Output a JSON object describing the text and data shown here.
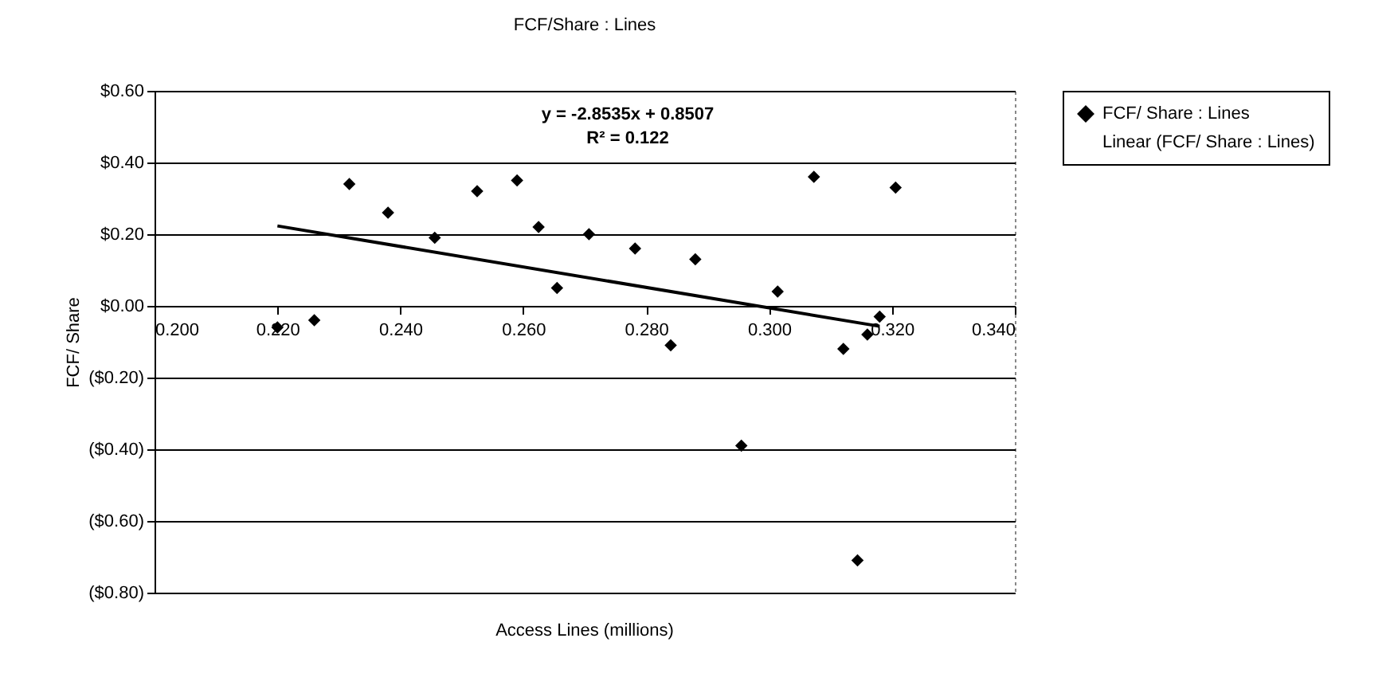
{
  "chart_data": {
    "type": "scatter",
    "title": "FCF/Share : Lines",
    "xlabel": "Access Lines (millions)",
    "ylabel": "FCF/ Share",
    "annotations": [
      "y = -2.8535x + 0.8507",
      "R² = 0.122"
    ],
    "xlim": [
      0.2,
      0.34
    ],
    "xticks": [
      {
        "value": 0.2,
        "label": "0.200"
      },
      {
        "value": 0.22,
        "label": "0.220"
      },
      {
        "value": 0.24,
        "label": "0.240"
      },
      {
        "value": 0.26,
        "label": "0.260"
      },
      {
        "value": 0.28,
        "label": "0.280"
      },
      {
        "value": 0.3,
        "label": "0.300"
      },
      {
        "value": 0.32,
        "label": "0.320"
      },
      {
        "value": 0.34,
        "label": "0.340"
      }
    ],
    "ylim": [
      -0.8,
      0.6
    ],
    "yticks": [
      {
        "value": -0.8,
        "label": "($0.80)"
      },
      {
        "value": -0.6,
        "label": "($0.60)"
      },
      {
        "value": -0.4,
        "label": "($0.40)"
      },
      {
        "value": -0.2,
        "label": "($0.20)"
      },
      {
        "value": 0,
        "label": "$0.00"
      },
      {
        "value": 0.2,
        "label": "$0.20"
      },
      {
        "value": 0.4,
        "label": "$0.40"
      },
      {
        "value": 0.6,
        "label": "$0.60"
      }
    ],
    "grid": "y",
    "legend": "right",
    "series": [
      {
        "name": "FCF/ Share : Lines",
        "marker": "diamond",
        "color": "#000000",
        "x": [
          0.22,
          0.226,
          0.2317,
          0.238,
          0.2456,
          0.2525,
          0.259,
          0.2625,
          0.2655,
          0.2707,
          0.2782,
          0.284,
          0.288,
          0.2955,
          0.3014,
          0.3073,
          0.3121,
          0.3144,
          0.316,
          0.318,
          0.3206
        ],
        "values": [
          -0.06,
          -0.04,
          0.34,
          0.26,
          0.19,
          0.32,
          0.35,
          0.22,
          0.05,
          0.2,
          0.16,
          -0.11,
          0.13,
          -0.39,
          0.04,
          0.36,
          -0.12,
          -0.71,
          -0.08,
          -0.03,
          0.33
        ]
      },
      {
        "name": "Linear (FCF/ Share : Lines)",
        "type": "line",
        "marker": "none",
        "color": "#000000",
        "x": [
          0.22,
          0.318
        ],
        "values": [
          0.223,
          -0.057
        ]
      }
    ]
  }
}
